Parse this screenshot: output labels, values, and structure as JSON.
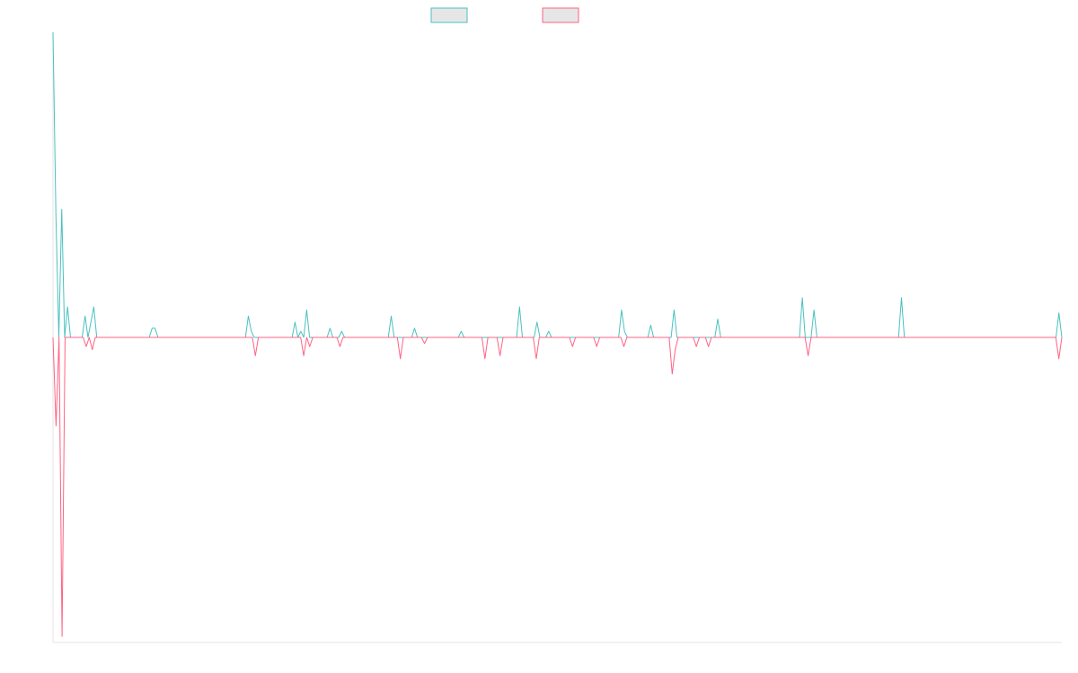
{
  "chart_data": {
    "type": "line",
    "title": "",
    "xlabel": "",
    "ylabel": "",
    "grid": false,
    "legend_position": "top-center",
    "ylim": [
      -100,
      100
    ],
    "series": [
      {
        "color": "#4bc0c0",
        "fill": "#e6e6e6",
        "values": [
          100,
          40,
          0,
          42,
          0,
          10,
          0,
          0,
          0,
          0,
          0,
          7,
          0,
          5,
          10,
          0,
          0,
          0,
          0,
          0,
          0,
          0,
          0,
          0,
          0,
          0,
          0,
          0,
          0,
          0,
          0,
          0,
          0,
          0,
          3,
          3,
          0,
          0,
          0,
          0,
          0,
          0,
          0,
          0,
          0,
          0,
          0,
          0,
          0,
          0,
          0,
          0,
          0,
          0,
          0,
          0,
          0,
          0,
          0,
          0,
          0,
          0,
          0,
          0,
          0,
          0,
          0,
          7,
          2,
          0,
          0,
          0,
          0,
          0,
          0,
          0,
          0,
          0,
          0,
          0,
          0,
          0,
          0,
          5,
          0,
          2,
          0,
          9,
          0,
          0,
          0,
          0,
          0,
          0,
          0,
          3,
          0,
          0,
          0,
          2,
          0,
          0,
          0,
          0,
          0,
          0,
          0,
          0,
          0,
          0,
          0,
          0,
          0,
          0,
          0,
          0,
          7,
          0,
          0,
          0,
          0,
          0,
          0,
          0,
          3,
          0,
          0,
          0,
          0,
          0,
          0,
          0,
          0,
          0,
          0,
          0,
          0,
          0,
          0,
          0,
          2,
          0,
          0,
          0,
          0,
          0,
          0,
          0,
          0,
          0,
          0,
          0,
          0,
          0,
          0,
          0,
          0,
          0,
          0,
          0,
          10,
          0,
          0,
          0,
          0,
          0,
          5,
          0,
          0,
          0,
          2,
          0,
          0,
          0,
          0,
          0,
          0,
          0,
          0,
          0,
          0,
          0,
          0,
          0,
          0,
          0,
          0,
          0,
          0,
          0,
          0,
          0,
          0,
          0,
          0,
          9,
          2,
          0,
          0,
          0,
          0,
          0,
          0,
          0,
          0,
          4,
          0,
          0,
          0,
          0,
          0,
          0,
          0,
          9,
          0,
          0,
          0,
          0,
          0,
          0,
          0,
          0,
          0,
          0,
          0,
          0,
          0,
          0,
          6,
          0,
          0,
          0,
          0,
          0,
          0,
          0,
          0,
          0,
          0,
          0,
          0,
          0,
          0,
          0,
          0,
          0,
          0,
          0,
          0,
          0,
          0,
          0,
          0,
          0,
          0,
          0,
          0,
          13,
          0,
          0,
          0,
          9,
          0,
          0,
          0,
          0,
          0,
          0,
          0,
          0,
          0,
          0,
          0,
          0,
          0,
          0,
          0,
          0,
          0,
          0,
          0,
          0,
          0,
          0,
          0,
          0,
          0,
          0,
          0,
          0,
          0,
          13,
          0,
          0,
          0,
          0,
          0,
          0,
          0,
          0,
          0,
          0,
          0,
          0,
          0,
          0,
          0,
          0,
          0,
          0,
          0,
          0,
          0,
          0,
          0,
          0,
          0,
          0,
          0,
          0,
          0,
          0,
          0,
          0,
          0,
          0,
          0,
          0,
          0,
          0,
          0,
          0,
          0,
          0,
          0,
          0,
          0,
          0,
          0,
          0,
          0,
          0,
          0,
          0,
          0,
          8,
          0
        ]
      },
      {
        "color": "#ff6384",
        "fill": "#e6e6e6",
        "values": [
          0,
          -29,
          0,
          -98,
          0,
          0,
          0,
          0,
          0,
          0,
          0,
          -3,
          0,
          -4,
          0,
          0,
          0,
          0,
          0,
          0,
          0,
          0,
          0,
          0,
          0,
          0,
          0,
          0,
          0,
          0,
          0,
          0,
          0,
          0,
          0,
          0,
          0,
          0,
          0,
          0,
          0,
          0,
          0,
          0,
          0,
          0,
          0,
          0,
          0,
          0,
          0,
          0,
          0,
          0,
          0,
          0,
          0,
          0,
          0,
          0,
          0,
          0,
          0,
          0,
          0,
          0,
          0,
          -6,
          0,
          0,
          0,
          0,
          0,
          0,
          0,
          0,
          0,
          0,
          0,
          0,
          0,
          0,
          0,
          -6,
          0,
          -3,
          0,
          0,
          0,
          0,
          0,
          0,
          0,
          0,
          0,
          -3,
          0,
          0,
          0,
          0,
          0,
          0,
          0,
          0,
          0,
          0,
          0,
          0,
          0,
          0,
          0,
          0,
          0,
          0,
          0,
          -7,
          0,
          0,
          0,
          0,
          0,
          0,
          0,
          -2,
          0,
          0,
          0,
          0,
          0,
          0,
          0,
          0,
          0,
          0,
          0,
          0,
          0,
          0,
          0,
          0,
          0,
          0,
          0,
          -7,
          0,
          0,
          0,
          0,
          -6,
          0,
          0,
          0,
          0,
          0,
          0,
          0,
          0,
          0,
          0,
          0,
          -7,
          0,
          0,
          0,
          0,
          0,
          0,
          0,
          0,
          0,
          0,
          0,
          -3,
          0,
          0,
          0,
          0,
          0,
          0,
          0,
          -3,
          0,
          0,
          0,
          0,
          0,
          0,
          0,
          0,
          -3,
          0,
          0,
          0,
          0,
          0,
          0,
          0,
          0,
          0,
          0,
          0,
          0,
          0,
          0,
          0,
          -12,
          -4,
          0,
          0,
          0,
          0,
          0,
          0,
          -3,
          0,
          0,
          0,
          -3,
          0,
          0,
          0,
          0,
          0,
          0,
          0,
          0,
          0,
          0,
          0,
          0,
          0,
          0,
          0,
          0,
          0,
          0,
          0,
          0,
          0,
          0,
          0,
          0,
          0,
          0,
          0,
          0,
          0,
          0,
          0,
          0,
          -6,
          0,
          0,
          0,
          0,
          0,
          0,
          0,
          0,
          0,
          0,
          0,
          0,
          0,
          0,
          0,
          0,
          0,
          0,
          0,
          0,
          0,
          0,
          0,
          0,
          0,
          0,
          0,
          0,
          0,
          0,
          0,
          0,
          0,
          0,
          0,
          0,
          0,
          0,
          0,
          0,
          0,
          0,
          0,
          0,
          0,
          0,
          0,
          0,
          0,
          0,
          0,
          0,
          0,
          0,
          0,
          0,
          0,
          0,
          0,
          0,
          0,
          0,
          0,
          0,
          0,
          0,
          0,
          0,
          0,
          0,
          0,
          0,
          0,
          0,
          0,
          0,
          0,
          0,
          0,
          0,
          0,
          0,
          -7,
          0
        ]
      }
    ]
  }
}
